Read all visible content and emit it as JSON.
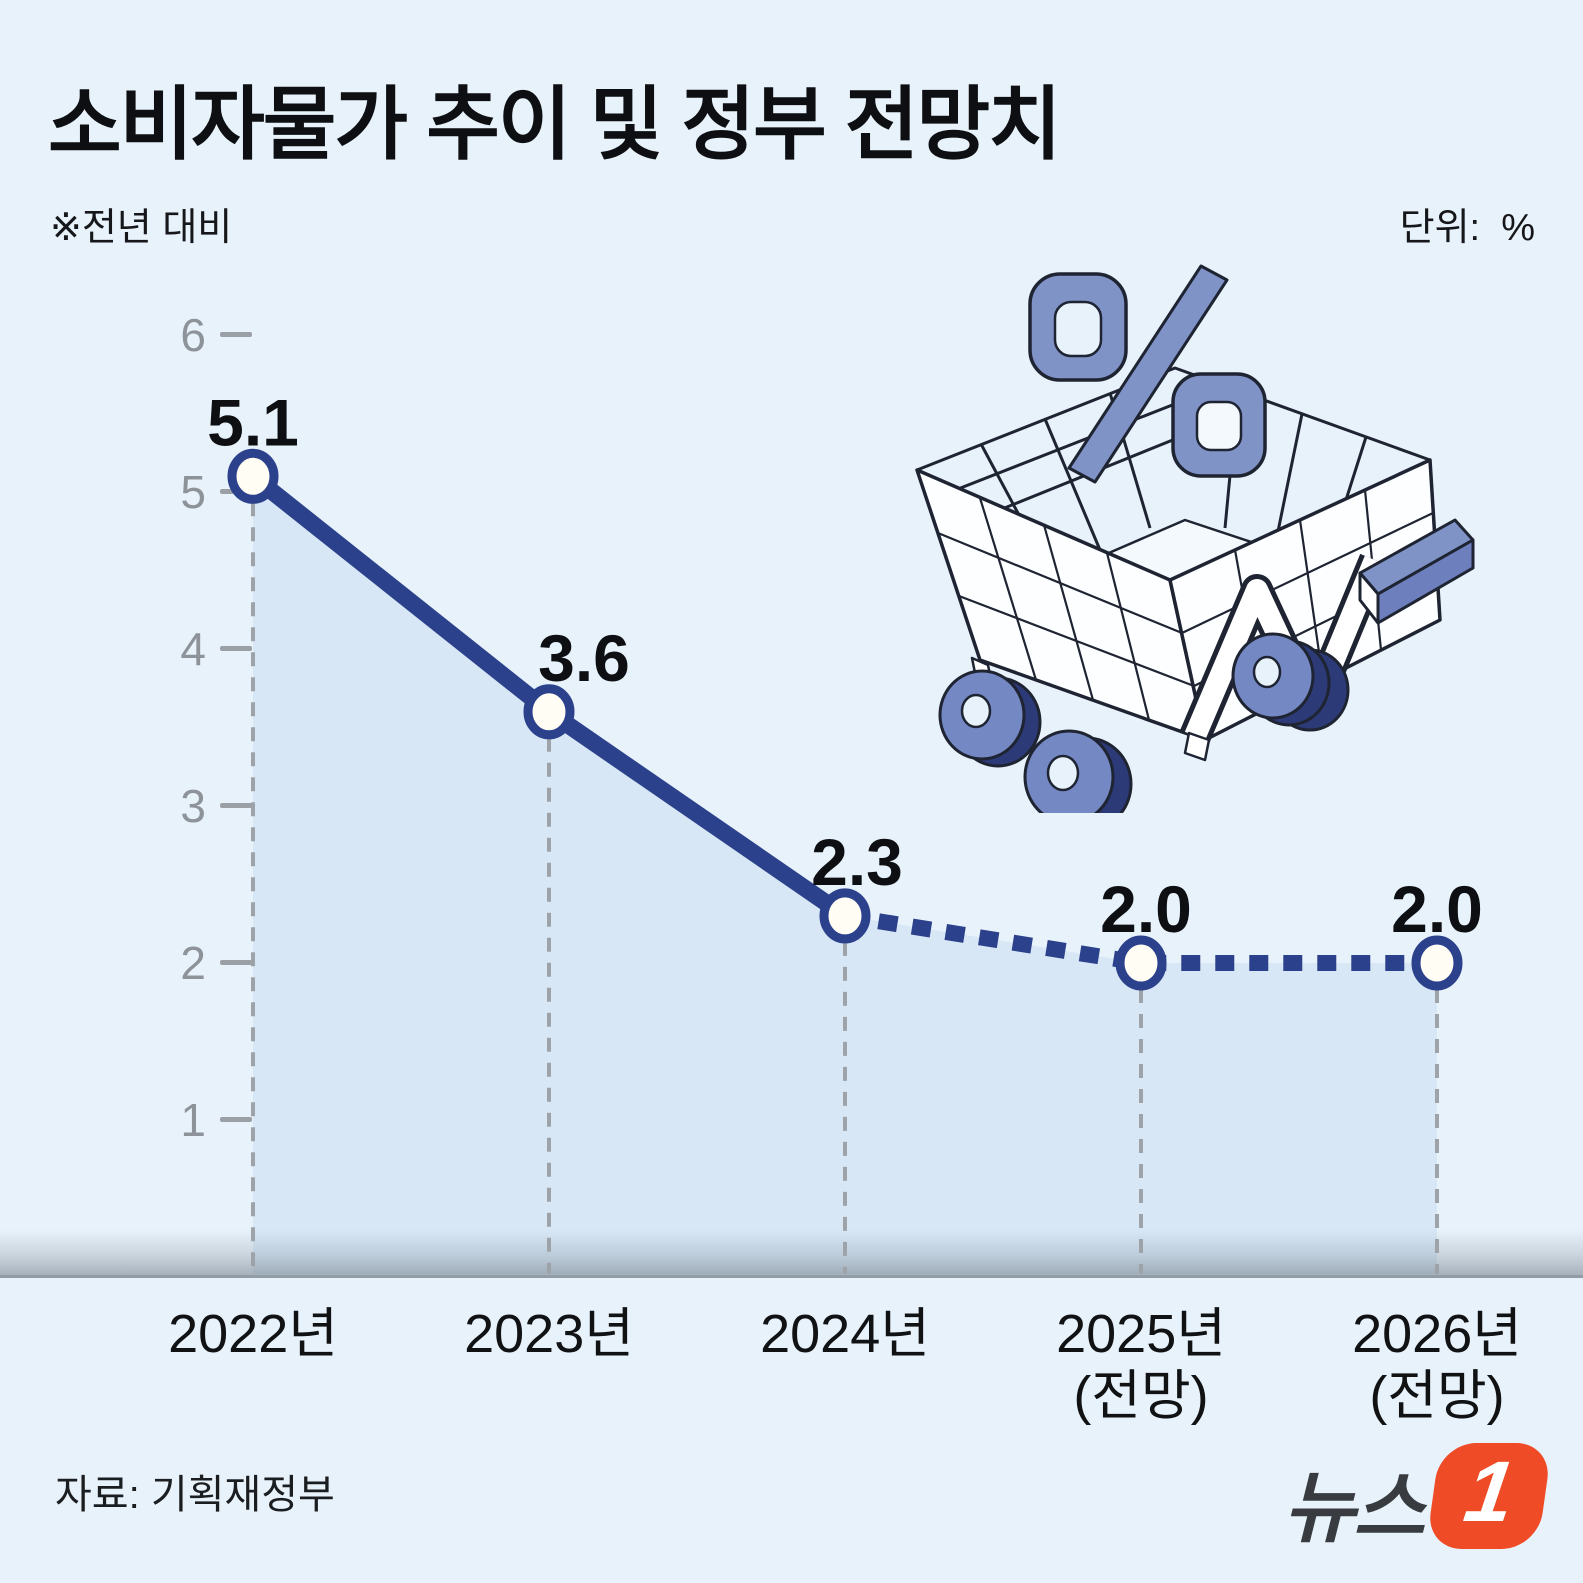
{
  "title": "소비자물가 추이 및 정부 전망치",
  "note": "※전년 대비",
  "unit_label": "단위:  %",
  "source_label": "자료: 기획재정부",
  "logo": {
    "brand": "뉴스",
    "numeral": "1"
  },
  "colors": {
    "background": "#e8f2fb",
    "area_fill": "#d7e7f6",
    "line_navy": "#2c418b",
    "marker_fill": "#fffdf4",
    "drop_line_gray": "#9da3a9",
    "tick_gray": "#8d9399",
    "text_black": "#0d0f12",
    "logo_orange": "#ee4b26",
    "cart_blue": "#8093c7",
    "cart_dark_navy": "#2c3a78"
  },
  "chart_data": {
    "type": "line",
    "title": "소비자물가 추이 및 정부 전망치",
    "note": "※전년 대비",
    "unit": "%",
    "source": "기획재정부",
    "categories": [
      "2022년",
      "2023년",
      "2024년",
      "2025년 (전망)",
      "2026년 (전망)"
    ],
    "x_labels": [
      [
        "2022년"
      ],
      [
        "2023년"
      ],
      [
        "2024년"
      ],
      [
        "2025년",
        "(전망)"
      ],
      [
        "2026년",
        "(전망)"
      ]
    ],
    "values": [
      5.1,
      3.6,
      2.3,
      2.0,
      2.0
    ],
    "value_labels": [
      "5.1",
      "3.6",
      "2.3",
      "2.0",
      "2.0"
    ],
    "series": [
      {
        "name": "actual",
        "style": "solid",
        "x": [
          "2022년",
          "2023년",
          "2024년"
        ],
        "values": [
          5.1,
          3.6,
          2.3
        ]
      },
      {
        "name": "forecast",
        "style": "dashed",
        "x": [
          "2024년",
          "2025년 (전망)",
          "2026년 (전망)"
        ],
        "values": [
          2.3,
          2.0,
          2.0
        ]
      }
    ],
    "ylim": [
      0,
      6
    ],
    "yticks": [
      6,
      5,
      4,
      3,
      2,
      1
    ],
    "grid": "vertical-dashed-droplines",
    "legend": "none",
    "area_fill_under_line": true
  }
}
